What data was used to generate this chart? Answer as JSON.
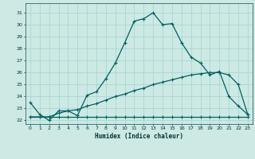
{
  "xlabel": "Humidex (Indice chaleur)",
  "background_color": "#cce9e4",
  "grid_color": "#aad6d0",
  "line_color": "#006060",
  "xlim": [
    -0.5,
    23.5
  ],
  "ylim": [
    21.7,
    31.8
  ],
  "xticks": [
    0,
    1,
    2,
    3,
    4,
    5,
    6,
    7,
    8,
    9,
    10,
    11,
    12,
    13,
    14,
    15,
    16,
    17,
    18,
    19,
    20,
    21,
    22,
    23
  ],
  "yticks": [
    22,
    23,
    24,
    25,
    26,
    27,
    28,
    29,
    30,
    31
  ],
  "line1_x": [
    0,
    1,
    2,
    3,
    4,
    5,
    6,
    7,
    8,
    9,
    10,
    11,
    12,
    13,
    14,
    15,
    16,
    17,
    18,
    19,
    20,
    21,
    22,
    23
  ],
  "line1_y": [
    23.5,
    22.5,
    22.0,
    22.8,
    22.8,
    22.4,
    24.1,
    24.4,
    25.5,
    26.8,
    28.5,
    30.3,
    30.5,
    31.0,
    30.0,
    30.1,
    28.5,
    27.3,
    26.8,
    25.8,
    26.1,
    24.0,
    23.2,
    22.5
  ],
  "line2_x": [
    0,
    1,
    2,
    3,
    4,
    5,
    6,
    7,
    8,
    9,
    10,
    11,
    12,
    13,
    14,
    15,
    16,
    17,
    18,
    19,
    20,
    21,
    22,
    23
  ],
  "line2_y": [
    22.3,
    22.3,
    22.3,
    22.6,
    22.8,
    22.9,
    23.2,
    23.4,
    23.7,
    24.0,
    24.2,
    24.5,
    24.7,
    25.0,
    25.2,
    25.4,
    25.6,
    25.8,
    25.9,
    26.0,
    26.0,
    25.8,
    25.0,
    22.5
  ],
  "line3_x": [
    0,
    1,
    2,
    3,
    4,
    5,
    6,
    7,
    8,
    9,
    10,
    11,
    12,
    13,
    14,
    15,
    16,
    17,
    18,
    19,
    20,
    21,
    22,
    23
  ],
  "line3_y": [
    22.3,
    22.3,
    22.3,
    22.3,
    22.3,
    22.3,
    22.3,
    22.3,
    22.3,
    22.3,
    22.3,
    22.3,
    22.3,
    22.3,
    22.3,
    22.3,
    22.3,
    22.3,
    22.3,
    22.3,
    22.3,
    22.3,
    22.3,
    22.3
  ]
}
